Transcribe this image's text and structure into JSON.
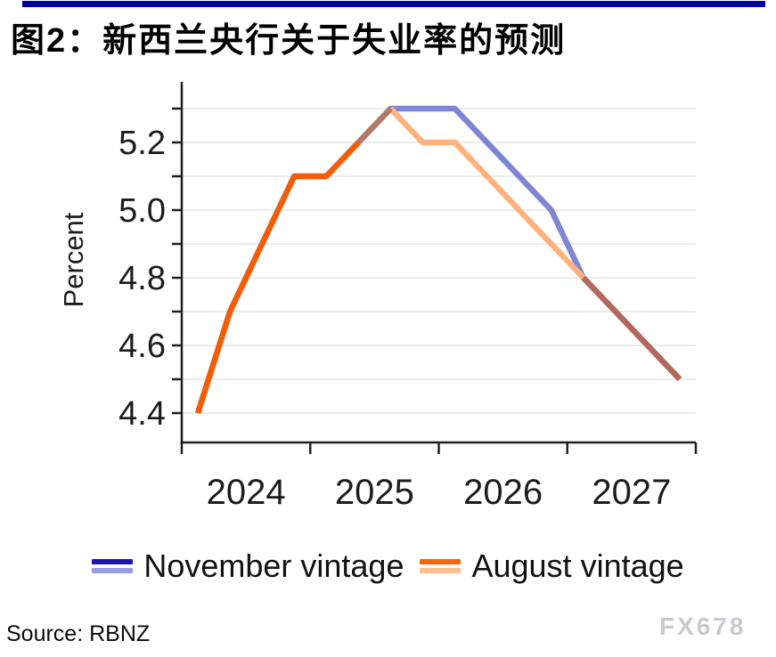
{
  "page": {
    "title": "图2：新西兰央行关于失业率的预测",
    "source": "Source: RBNZ",
    "watermark": "FX678"
  },
  "colors": {
    "top_bar": "#0000a0",
    "axis": "#1f1f1f",
    "gridline": "#ececec",
    "tick_label": "#1c1c1c",
    "november_forecast": "#7d86d3",
    "august_actual": "#f45c05",
    "august_forecast": "#ffb27d",
    "overlap_rise": "#b4786a",
    "overlap_tail": "#b2695b",
    "watermark_color": "#c9cacf"
  },
  "chart_data": {
    "type": "line",
    "title": "图2：新西兰央行关于失业率的预测",
    "xlabel": "",
    "ylabel": "Percent",
    "x_unit": "quarterly",
    "categories": [
      "2024 Q1",
      "2024 Q2",
      "2024 Q3",
      "2024 Q4",
      "2025 Q1",
      "2025 Q2",
      "2025 Q3",
      "2025 Q4",
      "2026 Q1",
      "2026 Q2",
      "2026 Q3",
      "2026 Q4",
      "2027 Q1",
      "2027 Q2",
      "2027 Q3",
      "2027 Q4"
    ],
    "year_labels": [
      "2024",
      "2025",
      "2026",
      "2027"
    ],
    "ylim": [
      4.35,
      5.35
    ],
    "grid_min": 4.4,
    "grid_max": 5.3,
    "grid_step": 0.1,
    "yticks_labeled": [
      "4.4",
      "4.6",
      "4.8",
      "5.0",
      "5.2"
    ],
    "grid_on": true,
    "legend_position": "bottom",
    "series": [
      {
        "name": "November vintage",
        "values": [
          4.4,
          4.7,
          4.9,
          5.1,
          5.1,
          5.2,
          5.3,
          5.3,
          5.3,
          5.2,
          5.1,
          5.0,
          4.8,
          4.7,
          4.6,
          4.5
        ]
      },
      {
        "name": "August vintage",
        "values": [
          4.4,
          4.7,
          4.9,
          5.1,
          5.1,
          5.2,
          5.3,
          5.2,
          5.2,
          5.1,
          5.0,
          4.9,
          4.8,
          4.7,
          4.6,
          4.5
        ]
      }
    ],
    "render": {
      "november_color": "#7d86d3",
      "segments": [
        {
          "series": 1,
          "from": 6,
          "to": 12,
          "color": "#ffb27d",
          "note": "August forecast (light orange)"
        },
        {
          "series": 1,
          "from": 12,
          "to": 15,
          "color": "#b2695b",
          "note": "overlapping tail of both vintages"
        },
        {
          "series": 1,
          "from": 0,
          "to": 5,
          "color": "#f45c05",
          "note": "shared actual data (dark orange)"
        },
        {
          "series": 1,
          "from": 5,
          "to": 6,
          "color": "#b4786a",
          "note": "overlapping rise to peak"
        }
      ]
    }
  },
  "legend": {
    "items": [
      {
        "label": "November vintage",
        "swatch_top": "#1c16ae",
        "swatch_bottom": "#97a0dc"
      },
      {
        "label": "August vintage",
        "swatch_top": "#fa6508",
        "swatch_bottom": "#ffbe8f"
      }
    ]
  }
}
